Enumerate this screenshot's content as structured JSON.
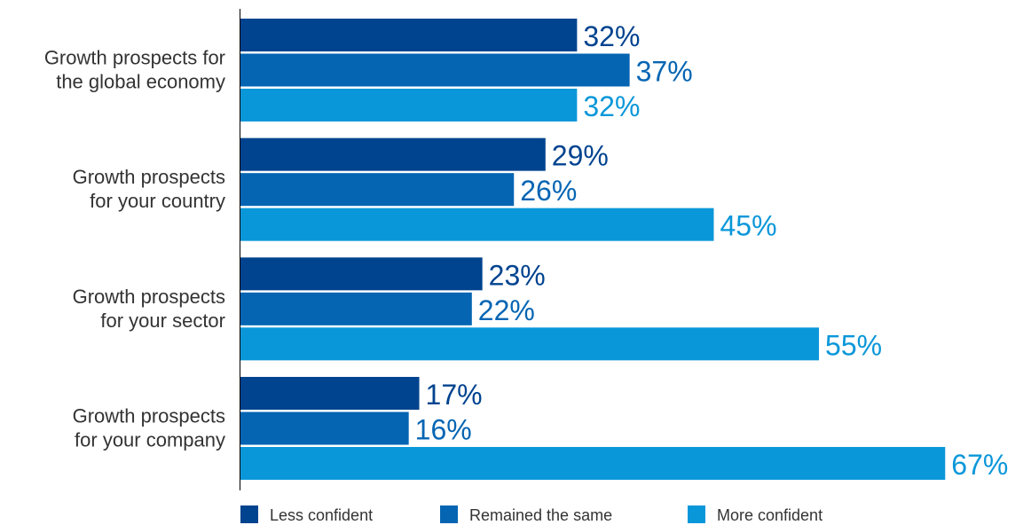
{
  "chart_data": {
    "type": "bar",
    "orientation": "horizontal",
    "categories": [
      [
        "Growth prospects for",
        "the global economy"
      ],
      [
        "Growth prospects",
        "for your country"
      ],
      [
        "Growth prospects",
        "for your sector"
      ],
      [
        "Growth prospects",
        "for your company"
      ]
    ],
    "series": [
      {
        "name": "Less confident",
        "values": [
          32,
          29,
          23,
          17
        ],
        "color": "#00438f"
      },
      {
        "name": "Remained the same",
        "values": [
          37,
          26,
          22,
          16
        ],
        "color": "#0565b3"
      },
      {
        "name": "More confident",
        "values": [
          32,
          45,
          55,
          67
        ],
        "color": "#0a97d9"
      }
    ],
    "value_suffix": "%",
    "xlim": [
      0,
      67
    ],
    "grid": false,
    "legend_position": "bottom",
    "title": "",
    "xlabel": "",
    "ylabel": ""
  }
}
